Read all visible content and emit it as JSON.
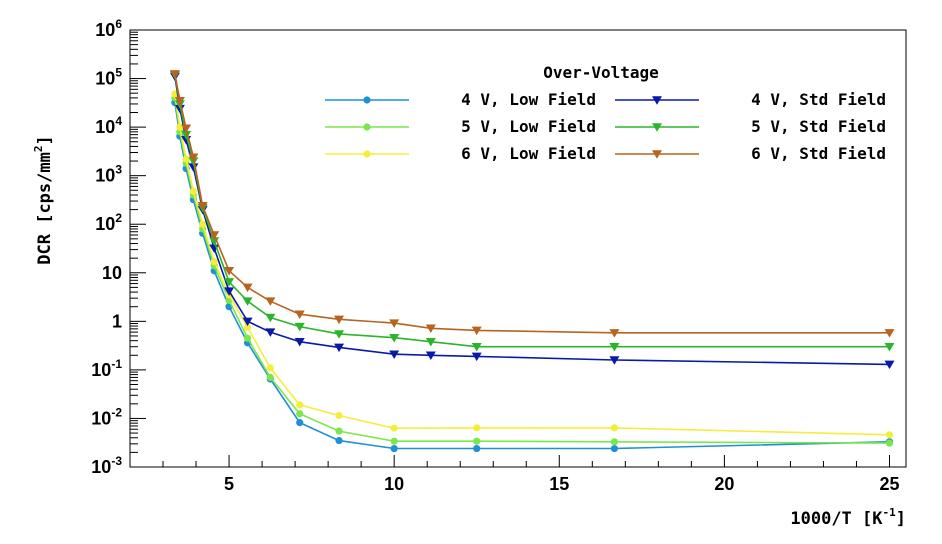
{
  "chart_data": {
    "type": "line",
    "x_axis": {
      "label_main": "1000/T [K",
      "label_sup": "-1",
      "label_end": "]",
      "range": [
        2,
        25.5
      ],
      "ticks": [
        5,
        10,
        15,
        20,
        25
      ],
      "tick_labels": [
        "5",
        "10",
        "15",
        "20",
        "25"
      ]
    },
    "y_axis": {
      "label_main": "DCR [cps/mm",
      "label_sup": "2",
      "label_end": "]",
      "scale": "log",
      "range": [
        0.001,
        1000000
      ],
      "ticks": [
        {
          "value": 0.001,
          "base": "10",
          "exp": "-3"
        },
        {
          "value": 0.01,
          "base": "10",
          "exp": "-2"
        },
        {
          "value": 0.1,
          "base": "10",
          "exp": "-1"
        },
        {
          "value": 1,
          "base": "1",
          "exp": ""
        },
        {
          "value": 10,
          "base": "10",
          "exp": ""
        },
        {
          "value": 100,
          "base": "10",
          "exp": "2"
        },
        {
          "value": 1000,
          "base": "10",
          "exp": "3"
        },
        {
          "value": 10000,
          "base": "10",
          "exp": "4"
        },
        {
          "value": 100000,
          "base": "10",
          "exp": "5"
        },
        {
          "value": 1000000,
          "base": "10",
          "exp": "6"
        }
      ]
    },
    "legend": {
      "title": "Over-Voltage",
      "position": "top-right",
      "columns": 2
    },
    "grid": false,
    "series": [
      {
        "name": "4 V, Low Field",
        "color": "#1f8fd6",
        "marker": "circle",
        "points": [
          [
            3.36,
            32000
          ],
          [
            3.51,
            6500
          ],
          [
            3.7,
            1400
          ],
          [
            3.92,
            320
          ],
          [
            4.2,
            65
          ],
          [
            4.55,
            11
          ],
          [
            5.0,
            2.0
          ],
          [
            5.56,
            0.36
          ],
          [
            6.25,
            0.065
          ],
          [
            7.14,
            0.0082
          ],
          [
            8.33,
            0.0035
          ],
          [
            10.0,
            0.0024
          ],
          [
            12.5,
            0.0024
          ],
          [
            16.67,
            0.0024
          ],
          [
            25.0,
            0.0033
          ]
        ]
      },
      {
        "name": "5 V, Low Field",
        "color": "#7ae84c",
        "marker": "circle",
        "points": [
          [
            3.36,
            40000
          ],
          [
            3.51,
            8000
          ],
          [
            3.7,
            1800
          ],
          [
            3.92,
            400
          ],
          [
            4.2,
            80
          ],
          [
            4.55,
            14
          ],
          [
            5.0,
            2.7
          ],
          [
            5.56,
            0.45
          ],
          [
            6.25,
            0.07
          ],
          [
            7.14,
            0.0125
          ],
          [
            8.33,
            0.0055
          ],
          [
            10.0,
            0.0034
          ],
          [
            12.5,
            0.0034
          ],
          [
            16.67,
            0.0033
          ],
          [
            25.0,
            0.0031
          ]
        ]
      },
      {
        "name": "6 V, Low Field",
        "color": "#f5ed3c",
        "marker": "circle",
        "points": [
          [
            3.36,
            48000
          ],
          [
            3.51,
            10000
          ],
          [
            3.7,
            2200
          ],
          [
            3.92,
            480
          ],
          [
            4.2,
            100
          ],
          [
            4.55,
            17
          ],
          [
            5.0,
            3.5
          ],
          [
            5.56,
            0.75
          ],
          [
            6.25,
            0.11
          ],
          [
            7.14,
            0.019
          ],
          [
            8.33,
            0.0115
          ],
          [
            10.0,
            0.0063
          ],
          [
            12.5,
            0.0064
          ],
          [
            16.67,
            0.0064
          ],
          [
            25.0,
            0.0046
          ]
        ]
      },
      {
        "name": "4 V, Std Field",
        "color": "#0a1aa8",
        "marker": "triangle-down",
        "points": [
          [
            3.36,
            110000
          ],
          [
            3.51,
            24000
          ],
          [
            3.7,
            5500
          ],
          [
            3.92,
            1500
          ],
          [
            4.2,
            200
          ],
          [
            4.55,
            32
          ],
          [
            5.0,
            4.2
          ],
          [
            5.56,
            1.0
          ],
          [
            6.25,
            0.6
          ],
          [
            7.14,
            0.38
          ],
          [
            8.33,
            0.29
          ],
          [
            10.0,
            0.21
          ],
          [
            11.11,
            0.2
          ],
          [
            12.5,
            0.19
          ],
          [
            16.67,
            0.16
          ],
          [
            25.0,
            0.13
          ]
        ]
      },
      {
        "name": "5 V, Std Field",
        "color": "#2bb52b",
        "marker": "triangle-down",
        "points": [
          [
            3.36,
            120000
          ],
          [
            3.51,
            30000
          ],
          [
            3.7,
            7000
          ],
          [
            3.92,
            2000
          ],
          [
            4.2,
            220
          ],
          [
            4.55,
            45
          ],
          [
            5.0,
            6.5
          ],
          [
            5.56,
            2.6
          ],
          [
            6.25,
            1.2
          ],
          [
            7.14,
            0.78
          ],
          [
            8.33,
            0.55
          ],
          [
            10.0,
            0.46
          ],
          [
            11.11,
            0.38
          ],
          [
            12.5,
            0.3
          ],
          [
            16.67,
            0.3
          ],
          [
            25.0,
            0.3
          ]
        ]
      },
      {
        "name": "6 V, Std Field",
        "color": "#b8641e",
        "marker": "triangle-down",
        "points": [
          [
            3.36,
            125000
          ],
          [
            3.51,
            35000
          ],
          [
            3.7,
            9500
          ],
          [
            3.92,
            2400
          ],
          [
            4.2,
            240
          ],
          [
            4.55,
            60
          ],
          [
            5.0,
            11
          ],
          [
            5.56,
            5.0
          ],
          [
            6.25,
            2.6
          ],
          [
            7.14,
            1.4
          ],
          [
            8.33,
            1.1
          ],
          [
            10.0,
            0.92
          ],
          [
            11.11,
            0.72
          ],
          [
            12.5,
            0.65
          ],
          [
            16.67,
            0.58
          ],
          [
            25.0,
            0.58
          ]
        ]
      }
    ]
  }
}
